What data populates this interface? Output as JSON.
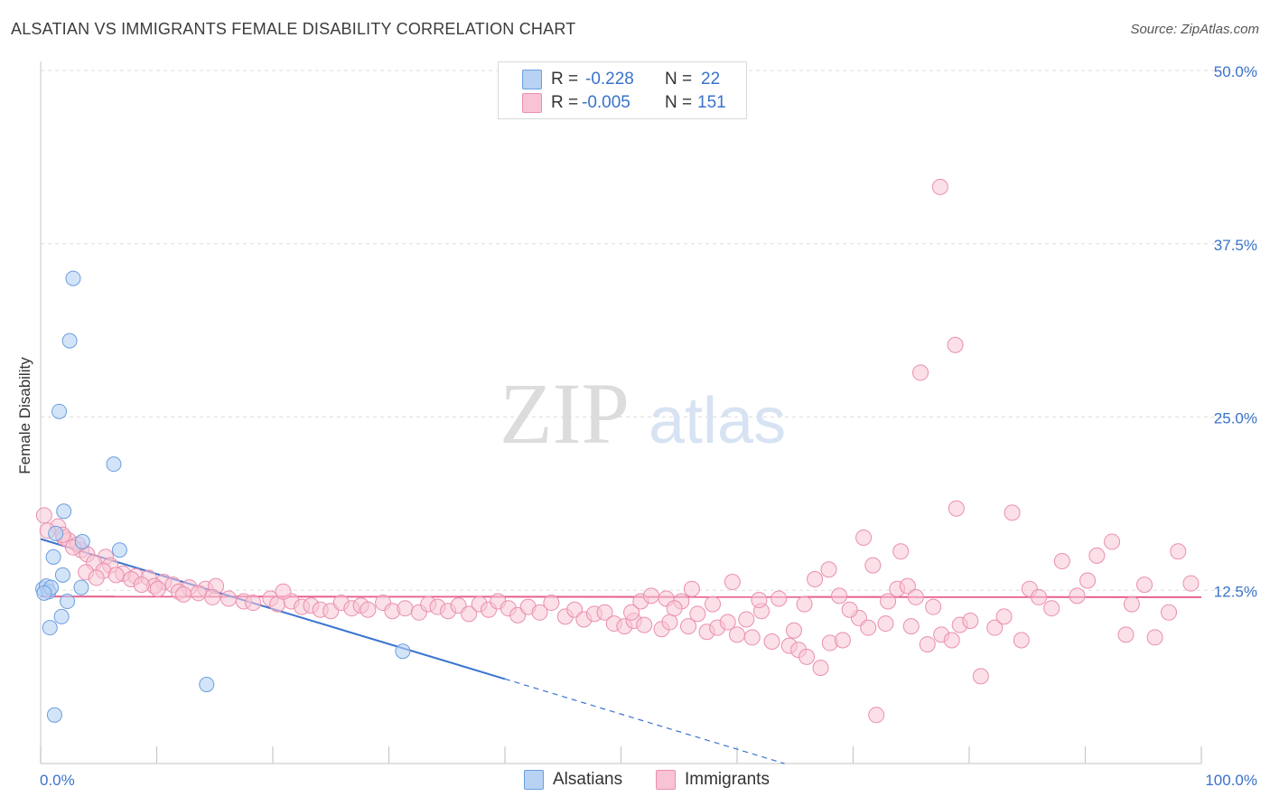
{
  "title": "ALSATIAN VS IMMIGRANTS FEMALE DISABILITY CORRELATION CHART",
  "source": "Source: ZipAtlas.com",
  "watermark": {
    "zip": "ZIP",
    "atlas": "atlas"
  },
  "legend": {
    "r_label": "R =",
    "n_label": "N =",
    "rows": [
      {
        "r": "-0.228",
        "n": "22",
        "color": "#aac8f2",
        "border": "#6a9ee0"
      },
      {
        "r": "-0.005",
        "n": "151",
        "color": "#f8c3d4",
        "border": "#ea8fad"
      }
    ]
  },
  "bottom_legend": {
    "alsatians": "Alsatians",
    "immigrants": "Immigrants"
  },
  "chart_data": {
    "type": "scatter",
    "title": "ALSATIAN VS IMMIGRANTS FEMALE DISABILITY CORRELATION CHART",
    "xlabel": "",
    "ylabel": "Female Disability",
    "xlim": [
      0,
      100
    ],
    "ylim": [
      0,
      50
    ],
    "x_tick_labels": [
      "0.0%",
      "100.0%"
    ],
    "y_ticks": [
      12.5,
      25.0,
      37.5,
      50.0
    ],
    "y_tick_labels": [
      "12.5%",
      "25.0%",
      "37.5%",
      "50.0%"
    ],
    "grid": true,
    "legend_position": "top-center",
    "colors": {
      "alsatians": "#5b8fd9",
      "alsatians_fill": "#b8d2f4",
      "immigrants": "#e75f8d",
      "immigrants_fill": "#f7c6d6",
      "axis_text": "#3a73c9"
    },
    "series": [
      {
        "name": "Alsatians",
        "r": -0.228,
        "n": 22,
        "trend": {
          "x": [
            0,
            40
          ],
          "y": [
            16.2,
            6.1
          ],
          "dashed_to_x": 100,
          "dashed_to_y": -9.1
        },
        "points": [
          [
            0.2,
            12.6
          ],
          [
            0.5,
            12.8
          ],
          [
            0.7,
            12.4
          ],
          [
            0.9,
            12.7
          ],
          [
            0.3,
            12.3
          ],
          [
            2.8,
            35.0
          ],
          [
            2.5,
            30.5
          ],
          [
            1.6,
            25.4
          ],
          [
            6.3,
            21.6
          ],
          [
            2.0,
            18.2
          ],
          [
            1.3,
            16.6
          ],
          [
            3.6,
            16.0
          ],
          [
            6.8,
            15.4
          ],
          [
            1.1,
            14.9
          ],
          [
            1.9,
            13.6
          ],
          [
            3.5,
            12.7
          ],
          [
            2.3,
            11.7
          ],
          [
            1.8,
            10.6
          ],
          [
            0.8,
            9.8
          ],
          [
            31.2,
            8.1
          ],
          [
            14.3,
            5.7
          ],
          [
            1.2,
            3.5
          ]
        ]
      },
      {
        "name": "Immigrants",
        "r": -0.005,
        "n": 151,
        "trend": {
          "x": [
            0,
            100
          ],
          "y": [
            12.05,
            12.0
          ]
        },
        "points": [
          [
            77.5,
            41.6
          ],
          [
            78.8,
            30.2
          ],
          [
            75.8,
            28.2
          ],
          [
            78.9,
            18.4
          ],
          [
            83.7,
            18.1
          ],
          [
            0.3,
            17.9
          ],
          [
            1.5,
            17.1
          ],
          [
            2.0,
            16.3
          ],
          [
            3.5,
            15.4
          ],
          [
            4.0,
            15.1
          ],
          [
            2.4,
            16.1
          ],
          [
            3.2,
            15.8
          ],
          [
            5.6,
            14.9
          ],
          [
            4.6,
            14.5
          ],
          [
            6.0,
            14.3
          ],
          [
            5.4,
            13.9
          ],
          [
            7.1,
            13.7
          ],
          [
            8.2,
            13.5
          ],
          [
            9.3,
            13.4
          ],
          [
            10.6,
            13.1
          ],
          [
            11.4,
            12.9
          ],
          [
            12.8,
            12.7
          ],
          [
            14.2,
            12.6
          ],
          [
            13.6,
            12.3
          ],
          [
            15.1,
            12.8
          ],
          [
            7.8,
            13.3
          ],
          [
            6.5,
            13.6
          ],
          [
            9.8,
            12.8
          ],
          [
            8.7,
            12.9
          ],
          [
            11.9,
            12.4
          ],
          [
            10.1,
            12.6
          ],
          [
            12.3,
            12.2
          ],
          [
            14.8,
            12.0
          ],
          [
            16.2,
            11.9
          ],
          [
            17.5,
            11.7
          ],
          [
            18.3,
            11.6
          ],
          [
            19.8,
            11.9
          ],
          [
            20.4,
            11.5
          ],
          [
            21.6,
            11.7
          ],
          [
            22.5,
            11.3
          ],
          [
            23.3,
            11.4
          ],
          [
            24.1,
            11.1
          ],
          [
            25.0,
            11.0
          ],
          [
            25.9,
            11.6
          ],
          [
            26.8,
            11.2
          ],
          [
            27.6,
            11.4
          ],
          [
            28.2,
            11.1
          ],
          [
            29.5,
            11.6
          ],
          [
            30.3,
            11.0
          ],
          [
            31.4,
            11.2
          ],
          [
            32.6,
            10.9
          ],
          [
            33.4,
            11.5
          ],
          [
            34.2,
            11.3
          ],
          [
            35.1,
            11.0
          ],
          [
            36.0,
            11.4
          ],
          [
            36.9,
            10.8
          ],
          [
            37.8,
            11.5
          ],
          [
            38.6,
            11.1
          ],
          [
            39.4,
            11.7
          ],
          [
            40.3,
            11.2
          ],
          [
            41.1,
            10.7
          ],
          [
            42.0,
            11.3
          ],
          [
            43.0,
            10.9
          ],
          [
            44.0,
            11.6
          ],
          [
            45.2,
            10.6
          ],
          [
            46.0,
            11.1
          ],
          [
            46.8,
            10.4
          ],
          [
            47.7,
            10.8
          ],
          [
            48.6,
            10.9
          ],
          [
            49.4,
            10.1
          ],
          [
            50.3,
            9.9
          ],
          [
            51.1,
            10.3
          ],
          [
            52.0,
            10.0
          ],
          [
            53.5,
            9.7
          ],
          [
            54.2,
            10.2
          ],
          [
            55.8,
            9.9
          ],
          [
            56.6,
            10.8
          ],
          [
            57.4,
            9.5
          ],
          [
            58.3,
            9.8
          ],
          [
            59.2,
            10.2
          ],
          [
            60.0,
            9.3
          ],
          [
            61.3,
            9.1
          ],
          [
            62.1,
            11.0
          ],
          [
            63.0,
            8.8
          ],
          [
            64.5,
            8.5
          ],
          [
            65.3,
            8.2
          ],
          [
            66.0,
            7.7
          ],
          [
            67.2,
            6.9
          ],
          [
            68.0,
            8.7
          ],
          [
            69.1,
            8.9
          ],
          [
            70.5,
            10.5
          ],
          [
            71.3,
            9.8
          ],
          [
            72.0,
            3.5
          ],
          [
            72.8,
            10.1
          ],
          [
            74.1,
            15.3
          ],
          [
            75.0,
            9.9
          ],
          [
            76.4,
            8.6
          ],
          [
            77.6,
            9.3
          ],
          [
            78.5,
            8.9
          ],
          [
            79.2,
            10.0
          ],
          [
            80.1,
            10.3
          ],
          [
            81.0,
            6.3
          ],
          [
            82.2,
            9.8
          ],
          [
            83.0,
            10.6
          ],
          [
            84.5,
            8.9
          ],
          [
            85.2,
            12.6
          ],
          [
            86.0,
            12.0
          ],
          [
            87.1,
            11.2
          ],
          [
            88.0,
            14.6
          ],
          [
            89.3,
            12.1
          ],
          [
            90.2,
            13.2
          ],
          [
            91.0,
            15.0
          ],
          [
            92.3,
            16.0
          ],
          [
            93.5,
            9.3
          ],
          [
            94.0,
            11.5
          ],
          [
            95.1,
            12.9
          ],
          [
            96.0,
            9.1
          ],
          [
            97.2,
            10.9
          ],
          [
            98.0,
            15.3
          ],
          [
            99.1,
            13.0
          ],
          [
            55.2,
            11.7
          ],
          [
            53.9,
            11.9
          ],
          [
            50.9,
            10.9
          ],
          [
            51.7,
            11.7
          ],
          [
            52.6,
            12.1
          ],
          [
            54.6,
            11.2
          ],
          [
            56.1,
            12.6
          ],
          [
            57.9,
            11.5
          ],
          [
            59.6,
            13.1
          ],
          [
            60.8,
            10.4
          ],
          [
            61.9,
            11.8
          ],
          [
            63.6,
            11.9
          ],
          [
            64.9,
            9.6
          ],
          [
            65.8,
            11.5
          ],
          [
            66.7,
            13.3
          ],
          [
            67.9,
            14.0
          ],
          [
            68.8,
            12.1
          ],
          [
            69.7,
            11.1
          ],
          [
            70.9,
            16.3
          ],
          [
            71.7,
            14.3
          ],
          [
            73.0,
            11.7
          ],
          [
            73.8,
            12.6
          ],
          [
            74.7,
            12.8
          ],
          [
            75.4,
            12.0
          ],
          [
            76.9,
            11.3
          ],
          [
            0.6,
            16.8
          ],
          [
            1.9,
            16.5
          ],
          [
            3.9,
            13.8
          ],
          [
            2.8,
            15.6
          ],
          [
            4.8,
            13.4
          ],
          [
            20.9,
            12.4
          ]
        ]
      }
    ]
  }
}
